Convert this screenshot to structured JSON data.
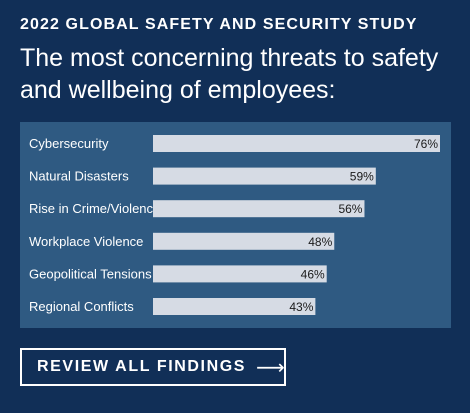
{
  "header": {
    "kicker": "2022 GLOBAL SAFETY AND SECURITY STUDY",
    "headline": "The most concerning threats to safety and wellbeing of employees:"
  },
  "chart_data": {
    "type": "bar",
    "orientation": "horizontal",
    "categories": [
      "Cybersecurity",
      "Natural Disasters",
      "Rise in Crime/Violence",
      "Workplace Violence",
      "Geopolitical Tensions",
      "Regional Conflicts"
    ],
    "values": [
      76,
      59,
      56,
      48,
      46,
      43
    ],
    "value_labels": [
      "76%",
      "59%",
      "56%",
      "48%",
      "46%",
      "43%"
    ],
    "xlim": [
      0,
      76
    ],
    "grid": false,
    "legend": "none",
    "colors": {
      "bar": "#d6dbe4",
      "panel": "#2f5a82",
      "background": "#112f57"
    }
  },
  "cta": {
    "label": "REVIEW ALL FINDINGS",
    "arrow_glyph": "⟶",
    "icon": "arrow-right-icon"
  }
}
